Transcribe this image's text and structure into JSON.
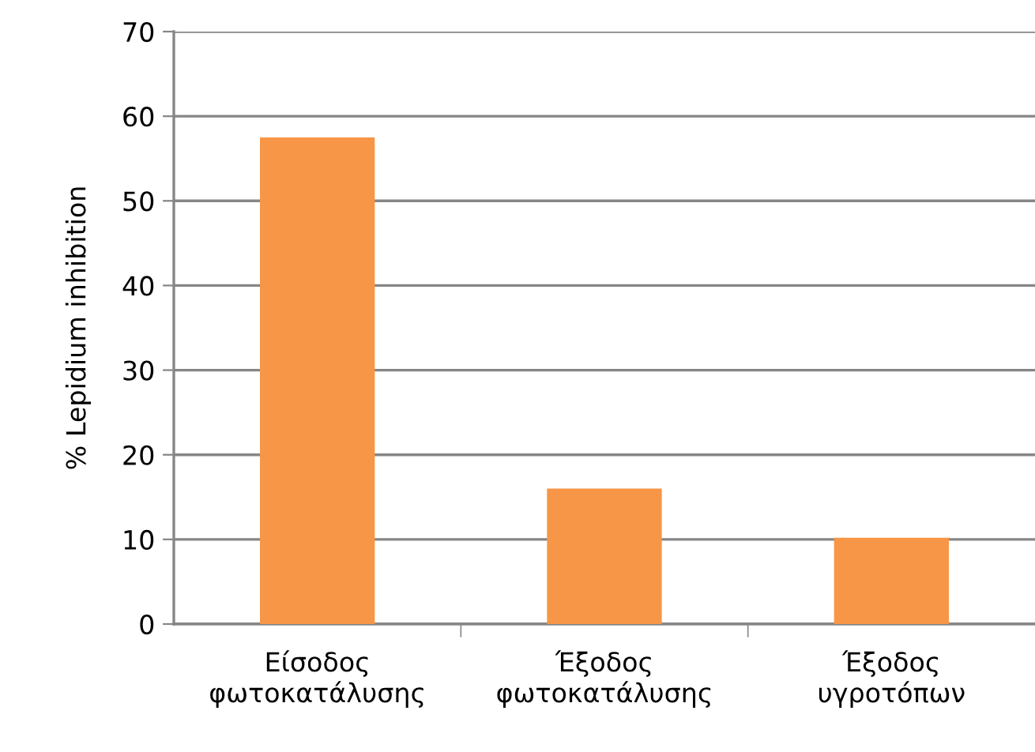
{
  "chart_data": {
    "type": "bar",
    "ylabel": "% Lepidium inhibition",
    "categories": [
      "Είσοδος\nφωτοκατάλυσης",
      "Έξοδος\nφωτοκατάλυσης",
      "Έξοδος\nυγροτόπων"
    ],
    "values": [
      57.5,
      16.0,
      10.2
    ],
    "color": "#f79646",
    "ylim": [
      0,
      70
    ],
    "yticks": [
      0,
      10,
      20,
      30,
      40,
      50,
      60,
      70
    ],
    "grid": "y",
    "legend": false
  }
}
